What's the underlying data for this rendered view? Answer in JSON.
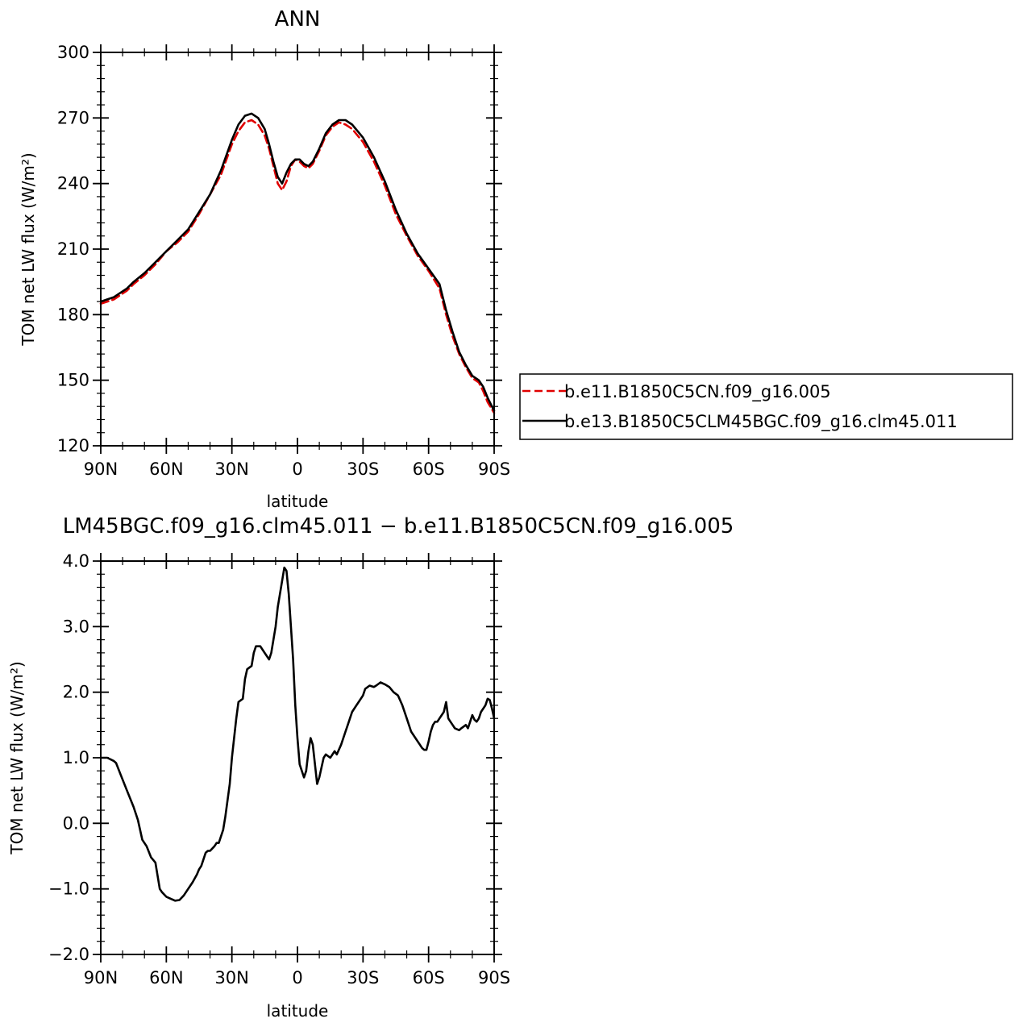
{
  "chart_data": [
    {
      "type": "line",
      "title": "ANN",
      "xlabel": "latitude",
      "ylabel": "TOM net LW flux (W/m²)",
      "xlim": [
        90,
        -90
      ],
      "ylim": [
        120,
        300
      ],
      "xticks": [
        90,
        60,
        30,
        0,
        -30,
        -60,
        -90
      ],
      "xtick_labels": [
        "90N",
        "60N",
        "30N",
        "0",
        "30S",
        "60S",
        "90S"
      ],
      "yticks": [
        120,
        150,
        180,
        210,
        240,
        270,
        300
      ],
      "ytick_labels": [
        "120",
        "150",
        "180",
        "210",
        "240",
        "270",
        "300"
      ],
      "legend_position": "right",
      "series": [
        {
          "name": "b.e11.B1850C5CN.f09_g16.005",
          "color": "#e00000",
          "dash": "dashed",
          "x": [
            90,
            87,
            84,
            81,
            78,
            75,
            70,
            65,
            60,
            55,
            50,
            45,
            40,
            35,
            30,
            27,
            24,
            21,
            18,
            15,
            13,
            11,
            9,
            7,
            5,
            3,
            1,
            -1,
            -3,
            -5,
            -7,
            -10,
            -13,
            -16,
            -19,
            -22,
            -25,
            -30,
            -35,
            -40,
            -45,
            -50,
            -55,
            -60,
            -65,
            -68,
            -71,
            -74,
            -77,
            -80,
            -83,
            -85,
            -87,
            -90
          ],
          "y": [
            185,
            186,
            187,
            189,
            191,
            194,
            198,
            203,
            209,
            213,
            218,
            226,
            235,
            244,
            258,
            264,
            268,
            269,
            267,
            262,
            256,
            248,
            240,
            237,
            241,
            248,
            251,
            250,
            248,
            247,
            249,
            255,
            262,
            266,
            268,
            267,
            265,
            259,
            250,
            239,
            226,
            216,
            207,
            200,
            192,
            180,
            170,
            162,
            156,
            151,
            149,
            145,
            140,
            135
          ]
        },
        {
          "name": "b.e13.B1850C5CLM45BGC.f09_g16.clm45.011",
          "color": "#000000",
          "dash": "solid",
          "x": [
            90,
            87,
            84,
            81,
            78,
            75,
            70,
            65,
            60,
            55,
            50,
            45,
            40,
            35,
            30,
            27,
            24,
            21,
            18,
            15,
            13,
            11,
            9,
            7,
            5,
            3,
            1,
            -1,
            -3,
            -5,
            -7,
            -10,
            -13,
            -16,
            -19,
            -22,
            -25,
            -30,
            -35,
            -40,
            -45,
            -50,
            -55,
            -60,
            -65,
            -68,
            -71,
            -74,
            -77,
            -80,
            -83,
            -85,
            -87,
            -90
          ],
          "y": [
            186,
            187,
            188,
            190,
            192,
            195,
            199,
            204,
            209,
            214,
            219,
            227,
            235,
            246,
            260,
            267,
            271,
            272,
            270,
            265,
            258,
            250,
            243,
            240,
            245,
            249,
            251,
            251,
            249,
            248,
            250,
            256,
            263,
            267,
            269,
            269,
            267,
            261,
            252,
            241,
            228,
            217,
            208,
            201,
            194,
            182,
            172,
            163,
            157,
            152,
            150,
            147,
            142,
            136
          ]
        }
      ]
    },
    {
      "type": "line",
      "title": "LM45BGC.f09_g16.clm45.011 − b.e11.B1850C5CN.f09_g16.005",
      "xlabel": "latitude",
      "ylabel": "TOM net LW flux (W/m²)",
      "xlim": [
        90,
        -90
      ],
      "ylim": [
        -2.0,
        4.0
      ],
      "xticks": [
        90,
        60,
        30,
        0,
        -30,
        -60,
        -90
      ],
      "xtick_labels": [
        "90N",
        "60N",
        "30N",
        "0",
        "30S",
        "60S",
        "90S"
      ],
      "yticks": [
        -2.0,
        -1.0,
        0.0,
        1.0,
        2.0,
        3.0,
        4.0
      ],
      "ytick_labels": [
        "−2.0",
        "−1.0",
        "0.0",
        "1.0",
        "2.0",
        "3.0",
        "4.0"
      ],
      "series": [
        {
          "color": "#000000",
          "x": [
            90,
            87,
            84,
            83,
            81,
            78,
            75,
            73,
            71,
            69,
            67,
            65,
            64,
            63,
            62,
            60,
            58,
            56,
            54,
            52,
            50,
            48,
            46,
            45,
            44,
            42,
            41,
            40,
            38,
            37,
            36,
            34,
            33,
            31,
            30,
            28,
            27,
            25,
            24,
            23,
            21,
            20,
            19,
            17,
            15,
            13,
            12,
            11,
            10,
            9,
            8,
            6,
            5,
            4,
            2,
            1,
            0,
            -1,
            -3,
            -4,
            -5,
            -6,
            -7,
            -9,
            -10,
            -12,
            -13,
            -15,
            -17,
            -18,
            -20,
            -22,
            -23,
            -25,
            -27,
            -28,
            -30,
            -31,
            -33,
            -35,
            -36,
            -38,
            -40,
            -42,
            -44,
            -46,
            -48,
            -50,
            -52,
            -54,
            -55,
            -56,
            -57,
            -58,
            -59,
            -60,
            -61,
            -62,
            -63,
            -64,
            -65,
            -67,
            -68,
            -69,
            -70,
            -71,
            -72,
            -74,
            -75,
            -77,
            -78,
            -79,
            -80,
            -81,
            -82,
            -83,
            -84,
            -86,
            -87,
            -88,
            -89,
            -90
          ],
          "y": [
            1.0,
            1.0,
            0.95,
            0.92,
            0.75,
            0.5,
            0.25,
            0.05,
            -0.25,
            -0.35,
            -0.52,
            -0.6,
            -0.8,
            -1.0,
            -1.05,
            -1.12,
            -1.15,
            -1.18,
            -1.17,
            -1.1,
            -1.0,
            -0.9,
            -0.78,
            -0.7,
            -0.65,
            -0.45,
            -0.42,
            -0.42,
            -0.35,
            -0.3,
            -0.3,
            -0.1,
            0.1,
            0.6,
            1.0,
            1.6,
            1.85,
            1.9,
            2.2,
            2.35,
            2.4,
            2.6,
            2.7,
            2.7,
            2.6,
            2.5,
            2.6,
            2.8,
            3.0,
            3.3,
            3.5,
            3.9,
            3.85,
            3.5,
            2.5,
            1.8,
            1.3,
            0.9,
            0.7,
            0.8,
            1.1,
            1.3,
            1.2,
            0.6,
            0.7,
            1.0,
            1.05,
            1.0,
            1.1,
            1.05,
            1.2,
            1.4,
            1.5,
            1.7,
            1.8,
            1.85,
            1.95,
            2.05,
            2.1,
            2.08,
            2.1,
            2.15,
            2.12,
            2.08,
            2.0,
            1.95,
            1.8,
            1.6,
            1.4,
            1.3,
            1.25,
            1.2,
            1.15,
            1.12,
            1.12,
            1.25,
            1.4,
            1.5,
            1.55,
            1.55,
            1.6,
            1.7,
            1.85,
            1.6,
            1.55,
            1.5,
            1.45,
            1.42,
            1.45,
            1.5,
            1.45,
            1.55,
            1.65,
            1.58,
            1.55,
            1.6,
            1.7,
            1.8,
            1.9,
            1.88,
            1.75,
            1.6
          ]
        }
      ]
    }
  ]
}
